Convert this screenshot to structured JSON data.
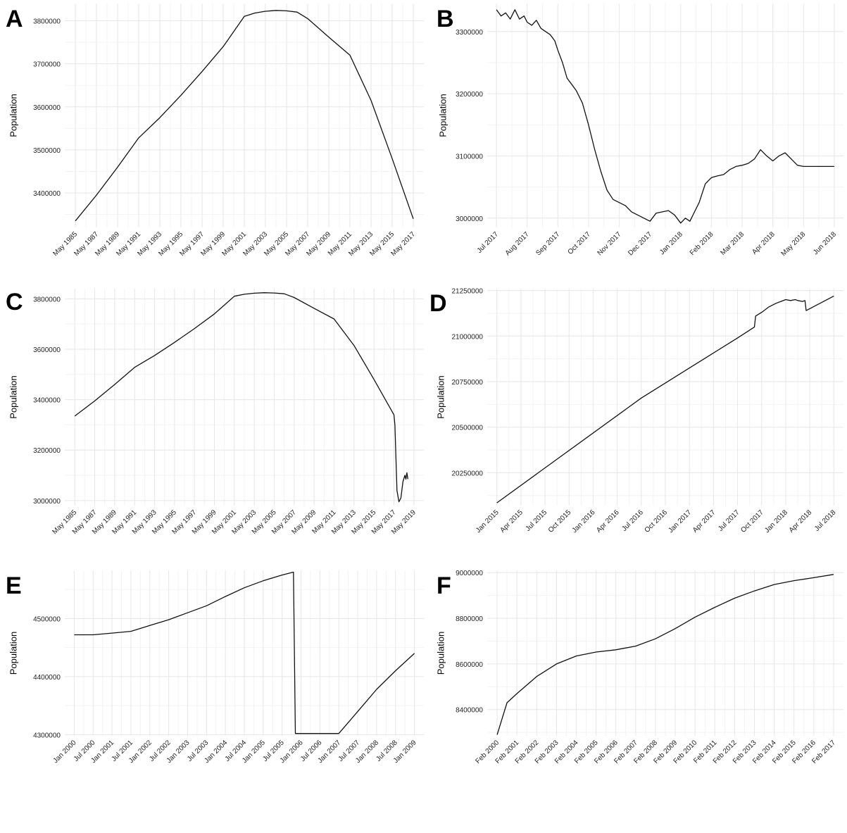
{
  "chart_data": [
    {
      "panel": "A",
      "type": "line",
      "ylabel": "Population",
      "yticks": [
        3400000,
        3500000,
        3600000,
        3700000,
        3800000
      ],
      "yrange": [
        3320000,
        3840000
      ],
      "xticks": [
        "May 1985",
        "May 1987",
        "May 1989",
        "May 1991",
        "May 1993",
        "May 1995",
        "May 1997",
        "May 1999",
        "May 2001",
        "May 2003",
        "May 2005",
        "May 2007",
        "May 2009",
        "May 2011",
        "May 2013",
        "May 2015",
        "May 2017"
      ],
      "xrange": [
        -0.5,
        16.5
      ],
      "series": [
        {
          "x": [
            0,
            1,
            2,
            3,
            4,
            5,
            6,
            7,
            7.5,
            8,
            8.5,
            9,
            9.5,
            10,
            10.5,
            11,
            12,
            13,
            14,
            15,
            16
          ],
          "y": [
            3335000,
            3395000,
            3460000,
            3528000,
            3575000,
            3627000,
            3682000,
            3740000,
            3775000,
            3810000,
            3818000,
            3822000,
            3824000,
            3823000,
            3820000,
            3805000,
            3762000,
            3720000,
            3615000,
            3480000,
            3340000
          ]
        }
      ]
    },
    {
      "panel": "B",
      "type": "line",
      "ylabel": "Population",
      "yticks": [
        3000000,
        3100000,
        3200000,
        3300000
      ],
      "yrange": [
        2985000,
        3345000
      ],
      "xticks": [
        "Jul 2017",
        "Aug 2017",
        "Sep 2017",
        "Oct 2017",
        "Nov 2017",
        "Dec 2017",
        "Jan 2018",
        "Feb 2018",
        "Mar 2018",
        "Apr 2018",
        "May 2018",
        "Jun 2018"
      ],
      "xrange": [
        -0.3,
        11.3
      ],
      "series": [
        {
          "x": [
            0,
            0.15,
            0.3,
            0.45,
            0.6,
            0.75,
            0.9,
            1,
            1.15,
            1.3,
            1.45,
            1.6,
            1.75,
            1.9,
            2,
            2.15,
            2.3,
            2.45,
            2.6,
            2.8,
            3,
            3.2,
            3.4,
            3.6,
            3.8,
            4,
            4.2,
            4.4,
            4.6,
            4.8,
            5,
            5.2,
            5.4,
            5.6,
            5.8,
            6,
            6.15,
            6.3,
            6.45,
            6.6,
            6.8,
            7,
            7.2,
            7.4,
            7.6,
            7.8,
            8,
            8.2,
            8.4,
            8.6,
            8.8,
            9,
            9.2,
            9.4,
            9.6,
            9.8,
            10,
            10.4,
            11
          ],
          "y": [
            3335000,
            3325000,
            3330000,
            3320000,
            3335000,
            3320000,
            3325000,
            3315000,
            3310000,
            3318000,
            3305000,
            3300000,
            3295000,
            3285000,
            3270000,
            3250000,
            3225000,
            3215000,
            3205000,
            3185000,
            3150000,
            3110000,
            3075000,
            3045000,
            3030000,
            3025000,
            3020000,
            3010000,
            3005000,
            3000000,
            2995000,
            3008000,
            3010000,
            3012000,
            3005000,
            2992000,
            3000000,
            2995000,
            3010000,
            3025000,
            3055000,
            3065000,
            3068000,
            3070000,
            3078000,
            3083000,
            3085000,
            3088000,
            3095000,
            3110000,
            3100000,
            3092000,
            3100000,
            3105000,
            3095000,
            3085000,
            3083000,
            3083000,
            3083000
          ]
        }
      ]
    },
    {
      "panel": "C",
      "type": "line",
      "ylabel": "Population",
      "yticks": [
        3000000,
        3200000,
        3400000,
        3600000,
        3800000
      ],
      "yrange": [
        2980000,
        3840000
      ],
      "xticks": [
        "May 1985",
        "May 1987",
        "May 1989",
        "May 1991",
        "May 1993",
        "May 1995",
        "May 1997",
        "May 1999",
        "May 2001",
        "May 2003",
        "May 2005",
        "May 2007",
        "May 2009",
        "May 2011",
        "May 2013",
        "May 2015",
        "May 2017",
        "May 2019"
      ],
      "xrange": [
        -0.5,
        17.5
      ],
      "series": [
        {
          "x": [
            0,
            1,
            2,
            3,
            4,
            5,
            6,
            7,
            7.5,
            8,
            8.5,
            9,
            9.5,
            10,
            10.5,
            11,
            12,
            13,
            14,
            15,
            16,
            16.05,
            16.15,
            16.25,
            16.35,
            16.45,
            16.55,
            16.6,
            16.65,
            16.7
          ],
          "y": [
            3335000,
            3395000,
            3460000,
            3528000,
            3575000,
            3627000,
            3682000,
            3740000,
            3775000,
            3810000,
            3818000,
            3822000,
            3824000,
            3823000,
            3820000,
            3805000,
            3762000,
            3720000,
            3615000,
            3480000,
            3340000,
            3300000,
            3040000,
            2995000,
            3010000,
            3075000,
            3100000,
            3085000,
            3110000,
            3085000
          ]
        }
      ]
    },
    {
      "panel": "D",
      "type": "line",
      "ylabel": "Population",
      "yticks": [
        20250000,
        20500000,
        20750000,
        21000000,
        21250000
      ],
      "yrange": [
        20070000,
        21260000
      ],
      "xticks": [
        "Jan 2015",
        "Apr 2015",
        "Jul 2015",
        "Oct 2015",
        "Jan 2016",
        "Apr 2016",
        "Jul 2016",
        "Oct 2016",
        "Jan 2017",
        "Apr 2017",
        "Jul 2017",
        "Oct 2017",
        "Jan 2018",
        "Apr 2018",
        "Jul 2018"
      ],
      "xrange": [
        -0.4,
        14.4
      ],
      "series": [
        {
          "x": [
            0,
            6,
            10,
            10.7,
            10.75,
            11,
            11.3,
            11.6,
            11.8,
            12,
            12.2,
            12.4,
            12.5,
            12.7,
            12.8,
            12.85,
            14
          ],
          "y": [
            20085000,
            20660000,
            20990000,
            21050000,
            21110000,
            21130000,
            21160000,
            21180000,
            21190000,
            21200000,
            21195000,
            21200000,
            21195000,
            21190000,
            21195000,
            21140000,
            21220000
          ]
        }
      ]
    },
    {
      "panel": "E",
      "type": "line",
      "ylabel": "Population",
      "yticks": [
        4300000,
        4400000,
        4500000
      ],
      "yrange": [
        4298000,
        4583000
      ],
      "xticks": [
        "Jan 2000",
        "Jul 2000",
        "Jan 2001",
        "Jul 2001",
        "Jan 2002",
        "Jul 2002",
        "Jan 2003",
        "Jul 2003",
        "Jan 2004",
        "Jul 2004",
        "Jan 2005",
        "Jul 2005",
        "Jan 2006",
        "Jul 2006",
        "Jan 2007",
        "Jul 2007",
        "Jan 2008",
        "Jul 2008",
        "Jan 2009"
      ],
      "xrange": [
        -0.5,
        18.5
      ],
      "series": [
        {
          "x": [
            0,
            1,
            2,
            3,
            4,
            5,
            6,
            7,
            8,
            9,
            10,
            11,
            11.6,
            11.7,
            13,
            14,
            15,
            16,
            17,
            18
          ],
          "y": [
            4472000,
            4472000,
            4475000,
            4478000,
            4488000,
            4498000,
            4510000,
            4522000,
            4538000,
            4553000,
            4565000,
            4575000,
            4580000,
            4302000,
            4302000,
            4302000,
            4340000,
            4378000,
            4410000,
            4440000
          ]
        }
      ]
    },
    {
      "panel": "F",
      "type": "line",
      "ylabel": "Population",
      "yticks": [
        8400000,
        8600000,
        8800000,
        9000000
      ],
      "yrange": [
        8285000,
        9010000
      ],
      "xticks": [
        "Feb 2000",
        "Feb 2001",
        "Feb 2002",
        "Feb 2003",
        "Feb 2004",
        "Feb 2005",
        "Feb 2006",
        "Feb 2007",
        "Feb 2008",
        "Feb 2009",
        "Feb 2010",
        "Feb 2011",
        "Feb 2012",
        "Feb 2013",
        "Feb 2014",
        "Feb 2015",
        "Feb 2016",
        "Feb 2017"
      ],
      "xrange": [
        -0.5,
        17.5
      ],
      "series": [
        {
          "x": [
            0,
            0.5,
            1,
            2,
            3,
            4,
            5,
            6,
            7,
            8,
            9,
            10,
            11,
            12,
            13,
            14,
            15,
            16,
            17
          ],
          "y": [
            8290000,
            8430000,
            8470000,
            8545000,
            8600000,
            8635000,
            8652000,
            8662000,
            8678000,
            8710000,
            8755000,
            8805000,
            8848000,
            8888000,
            8920000,
            8948000,
            8965000,
            8978000,
            8992000
          ]
        }
      ]
    }
  ]
}
